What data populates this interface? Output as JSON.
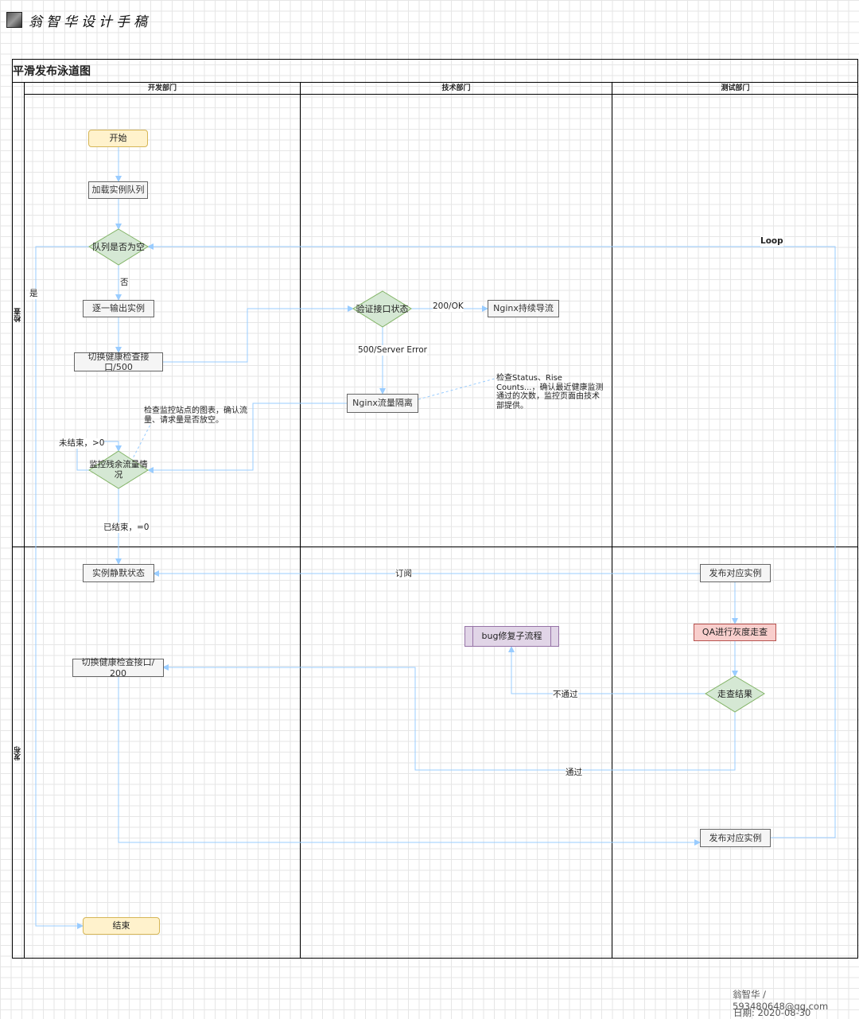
{
  "header": {
    "brand": "翁智华设计手稿"
  },
  "diagram": {
    "title": "平滑发布泳道图",
    "lanes": [
      "开发部门",
      "技术部门",
      "测试部门"
    ],
    "rows": [
      "检查",
      "发布"
    ],
    "nodes": {
      "start": "开始",
      "load_queue": "加载实例队列",
      "queue_empty": "队列是否为空",
      "output_instance": "逐一输出实例",
      "switch_500": "切换健康检查接口/500",
      "verify_status": "验证接口状态",
      "nginx_continue": "Nginx持续导流",
      "nginx_isolate": "Nginx流量隔离",
      "monitor_traffic": "监控残余流量情况",
      "instance_silent": "实例静默状态",
      "publish_instance_1": "发布对应实例",
      "bug_fix": "bug修复子流程",
      "qa_gray": "QA进行灰度走查",
      "switch_200": "切换健康检查接口/ 200",
      "review_result": "走查结果",
      "publish_instance_2": "发布对应实例",
      "end": "结束"
    },
    "edge_labels": {
      "yes": "是",
      "no": "否",
      "ok": "200/OK",
      "error": "500/Server Error",
      "not_ended": "未结束，>0",
      "ended": "已结束，=0",
      "subscribe": "订阅",
      "fail": "不通过",
      "pass": "通过",
      "loop": "Loop"
    },
    "notes": {
      "monitor_note": "检查监控站点的图表，确认流量、请求量是否放空。",
      "status_note": "检查Status、Rise Counts...，确认最近健康监测通过的次数，监控页面由技术部提供。"
    },
    "colors": {
      "edge": "#99ccff",
      "terminal_fill": "#fff2cc",
      "decision_fill": "#d5e8d4",
      "subprocess_fill": "#e1d5e7",
      "qa_fill": "#f8cecc"
    }
  },
  "footer": {
    "author": "翁智华 / 593480648@qq.com",
    "date": "日期:  2020-08-30"
  }
}
